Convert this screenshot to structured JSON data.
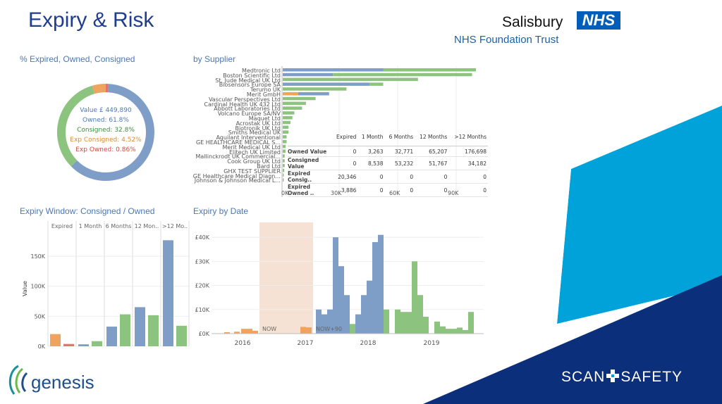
{
  "header": {
    "title": "Expiry & Risk",
    "trust_name": "Salisbury",
    "nhs_badge": "NHS",
    "trust_sub": "NHS Foundation Trust"
  },
  "donut": {
    "title": "% Expired, Owned, Consigned",
    "value_line": "Value £ 449,890",
    "owned": "Owned: 61.8%",
    "consigned": "Consigned: 32.8%",
    "exp_consigned": "Exp Consigned: 4.52%",
    "exp_owned": "Exp Owned: 0.86%",
    "colors": {
      "owned": "#7e9ec8",
      "consigned": "#8cc37e",
      "exp_consigned": "#f0a35e",
      "exp_owned": "#e2746a"
    }
  },
  "supplier": {
    "title": "by Supplier",
    "suppliers": [
      "Medtronic Ltd",
      "Boston Scientific Ltd",
      "St. Jude Medical UK Ltd",
      "Biosensors Europe SA",
      "Terumo UK",
      "Merit GmbH",
      "Vascular Perspectives Ltd",
      "Cardinal Health UK 432 Ltd",
      "Abbott Laboratories Ltd",
      "Volcano Europe SA/NV",
      "Maquet Ltd",
      "Acrostak UK Ltd",
      "Biotronik UK Ltd",
      "Smiths Medical UK",
      "Aquilant Interventional",
      "GE HEALTHCARE MEDICAL S...",
      "Merit Medical UK Ltd",
      "Elitech UK Limited",
      "Mallinckrodt UK Commercial...",
      "Cook Group UK Ltd",
      "Bard Ltd",
      "GHX TEST SUPPLIER",
      "GE Healthcare Medical Diagn...",
      "Johnson & Johnson Medical L..."
    ],
    "axis_ticks": [
      "0K",
      "30K",
      "60K",
      "90K"
    ],
    "table": {
      "headers": [
        "Expired",
        "1 Month",
        "6 Months",
        "12 Months",
        ">12 Months"
      ],
      "rows": [
        {
          "label": "Owned Value",
          "values": [
            "0",
            "3,263",
            "32,771",
            "65,207",
            "176,698"
          ]
        },
        {
          "label": "Consigned Value",
          "values": [
            "0",
            "8,538",
            "53,232",
            "51,767",
            "34,182"
          ]
        },
        {
          "label": "Expired Consig..",
          "values": [
            "20,346",
            "0",
            "0",
            "0",
            "0"
          ]
        },
        {
          "label": "Expired Owned ..",
          "values": [
            "3,886",
            "0",
            "0",
            "0",
            "0"
          ]
        }
      ]
    }
  },
  "window": {
    "title": "Expiry Window: Consigned / Owned",
    "ylabel": "Value",
    "y_ticks": [
      "150K",
      "100K",
      "50K",
      "0K"
    ],
    "categories": [
      "Expired",
      "1 Month",
      "6 Months",
      "12 Mon..",
      ">12 Mo.."
    ]
  },
  "bydate": {
    "title": "Expiry by Date",
    "y_ticks": [
      "£40K",
      "£30K",
      "£20K",
      "£10K",
      "£0K"
    ],
    "x_ticks": [
      "2016",
      "2017",
      "2018",
      "2019"
    ],
    "now_label": "NOW",
    "now90_label": "NOW+90"
  },
  "footer": {
    "genesis": "genesis",
    "scan": "SCAN",
    "safety": "SAFETY"
  },
  "chart_data": [
    {
      "type": "pie",
      "title": "% Expired, Owned, Consigned",
      "categories": [
        "Owned",
        "Consigned",
        "Exp Consigned",
        "Exp Owned"
      ],
      "values": [
        61.8,
        32.8,
        4.52,
        0.86
      ]
    },
    {
      "type": "table",
      "title": "by Supplier",
      "columns": [
        "Expired",
        "1 Month",
        "6 Months",
        "12 Months",
        ">12 Months"
      ],
      "rows": [
        [
          "Owned Value",
          0,
          3263,
          32771,
          65207,
          176698
        ],
        [
          "Consigned Value",
          0,
          8538,
          53232,
          51767,
          34182
        ],
        [
          "Expired Consig..",
          20346,
          0,
          0,
          0,
          0
        ],
        [
          "Expired Owned ..",
          3886,
          0,
          0,
          0,
          0
        ]
      ]
    },
    {
      "type": "bar",
      "title": "Expiry Window: Consigned / Owned",
      "ylabel": "Value",
      "categories": [
        "Expired",
        "1 Month",
        "6 Months",
        "12 Mon..",
        ">12 Mo.."
      ],
      "series": [
        {
          "name": "Consigned",
          "values": [
            20346,
            8538,
            53232,
            51767,
            34182
          ]
        },
        {
          "name": "Owned",
          "values": [
            3886,
            3263,
            32771,
            65207,
            176698
          ]
        }
      ],
      "ylim": [
        0,
        190000
      ]
    },
    {
      "type": "bar",
      "title": "Expiry by Date",
      "x": [
        "2016",
        "2017",
        "2018",
        "2019"
      ],
      "ylim": [
        0,
        45000
      ]
    }
  ]
}
